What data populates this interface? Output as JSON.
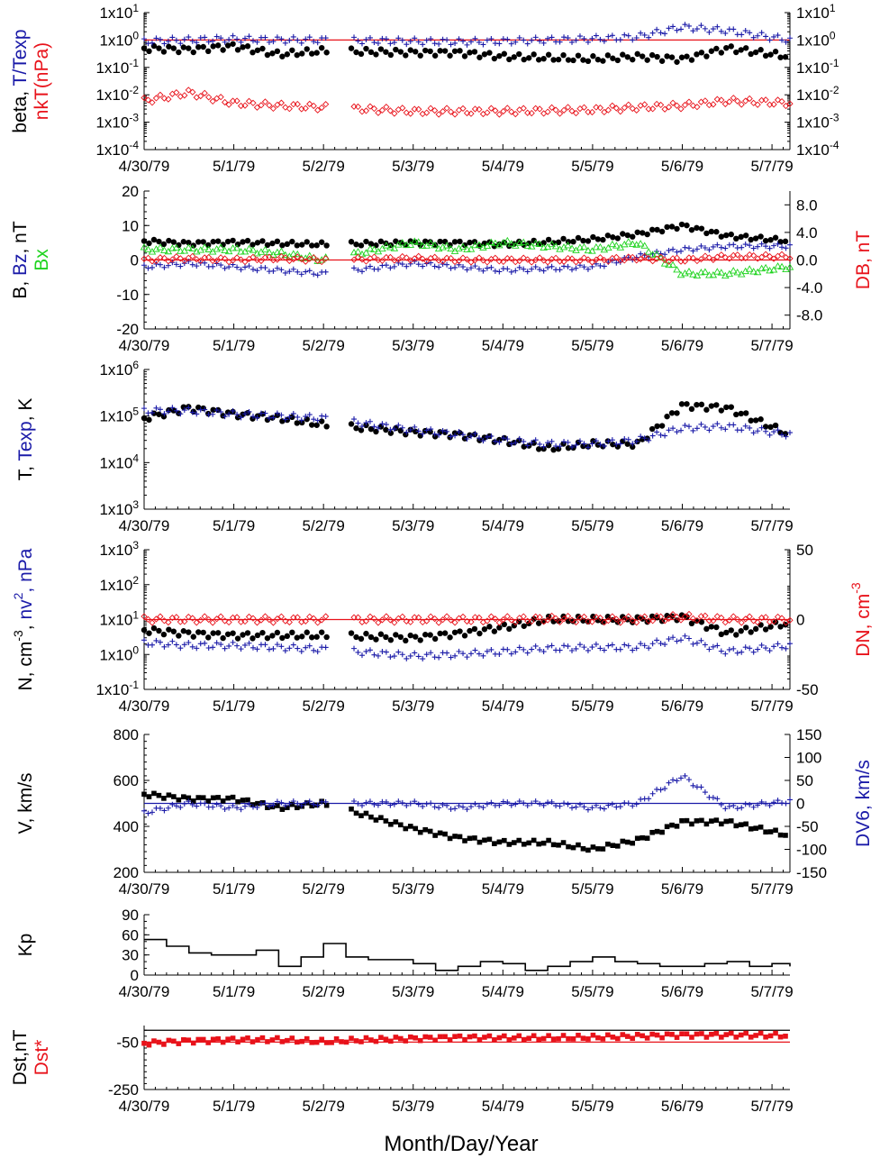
{
  "colors": {
    "black": "#000000",
    "blue": "#1a1aa8",
    "red": "#e8121a",
    "green": "#1fd31f"
  },
  "x_tick_labels": [
    "4/30/79",
    "5/1/79",
    "5/2/79",
    "5/3/79",
    "5/4/79",
    "5/5/79",
    "5/6/79",
    "5/7/79"
  ],
  "x_axis_title": "Month/Day/Year",
  "chart_data": [
    {
      "id": "beta",
      "type": "scatter",
      "yscale": "log",
      "ylim": [
        0.0001,
        10
      ],
      "yticks_left": [
        "1x10^1",
        "1x10^0",
        "1x10^-1",
        "1x10^-2",
        "1x10^-3",
        "1x10^-4"
      ],
      "yticks_right": [
        "1x10^1",
        "1x10^0",
        "1x10^-1",
        "1x10^-2",
        "1x10^-3",
        "1x10^-4"
      ],
      "ylabel_lines": [
        [
          {
            "t": "beta, ",
            "c": "black"
          },
          {
            "t": "T/Texp",
            "c": "blue"
          }
        ],
        [
          {
            "t": "nkT(nPa)",
            "c": "red"
          }
        ]
      ],
      "ref_lines": [
        {
          "y": 1,
          "color": "red"
        }
      ],
      "series": [
        {
          "marker": "dot",
          "color": "black",
          "x": [
            0,
            0.5,
            1,
            1.5,
            2,
            3,
            3.5,
            4,
            5,
            5.5,
            6,
            6.5,
            7.2
          ],
          "y": [
            0.5,
            0.45,
            0.6,
            0.3,
            0.4,
            0.35,
            0.35,
            0.25,
            0.2,
            0.25,
            0.2,
            0.5,
            0.25
          ]
        },
        {
          "marker": "plus",
          "color": "blue",
          "x": [
            0,
            0.5,
            1,
            1.5,
            2,
            3,
            3.5,
            4,
            5,
            5.5,
            6,
            6.5,
            7.2
          ],
          "y": [
            0.9,
            1.0,
            1.1,
            1.0,
            1.0,
            0.9,
            0.85,
            0.9,
            1.1,
            1.3,
            3.0,
            2.2,
            1.0
          ]
        },
        {
          "marker": "diamond",
          "color": "red",
          "x": [
            0,
            0.5,
            1,
            1.5,
            2,
            3,
            3.5,
            4,
            5,
            5.5,
            6,
            6.5,
            7.2
          ],
          "y": [
            0.006,
            0.012,
            0.005,
            0.004,
            0.0035,
            0.0025,
            0.0025,
            0.0025,
            0.0028,
            0.0035,
            0.004,
            0.006,
            0.005
          ]
        }
      ]
    },
    {
      "id": "b",
      "type": "scatter",
      "yscale": "linear",
      "ylim": [
        -20,
        20
      ],
      "ylim_right": [
        -10,
        10
      ],
      "yticks_left": [
        "20",
        "10",
        "0",
        "-10",
        "-20"
      ],
      "yticks_right": [
        "8.0",
        "4.0",
        "0.0",
        "-4.0",
        "-8.0"
      ],
      "ylabel_lines": [
        [
          {
            "t": "B, ",
            "c": "black"
          },
          {
            "t": "Bz",
            "c": "blue"
          },
          {
            "t": ", nT",
            "c": "black"
          }
        ],
        [
          {
            "t": "Bx",
            "c": "green"
          }
        ]
      ],
      "ylabel_right": {
        "t": "DB, nT",
        "c": "red"
      },
      "ref_lines": [
        {
          "y": 0,
          "color": "red"
        }
      ],
      "series": [
        {
          "marker": "dot",
          "color": "black",
          "x": [
            0,
            0.5,
            1,
            1.5,
            2,
            3,
            3.5,
            4,
            5,
            5.5,
            6,
            6.5,
            7.2
          ],
          "y": [
            5.5,
            4.8,
            5.2,
            4.8,
            4.5,
            5.0,
            5.0,
            4.5,
            6.0,
            7.5,
            10.0,
            7.0,
            5.5
          ]
        },
        {
          "marker": "plus",
          "color": "blue",
          "x": [
            0,
            0.5,
            1,
            1.5,
            2,
            3,
            3.5,
            4,
            5,
            5.5,
            6,
            6.5,
            7.2
          ],
          "y": [
            -2,
            -1,
            -2,
            -3,
            -4,
            -1,
            -2,
            -3,
            -2,
            1,
            3,
            4,
            4
          ]
        },
        {
          "marker": "tri",
          "color": "green",
          "x": [
            0,
            0.5,
            1,
            1.5,
            2,
            3,
            3.5,
            4,
            5,
            5.5,
            6,
            6.5,
            7.2
          ],
          "y": [
            3,
            3,
            3,
            2,
            0,
            5,
            3,
            5,
            3,
            5,
            -4,
            -4,
            -2
          ]
        },
        {
          "marker": "diamond",
          "color": "red",
          "x": [
            0,
            0.5,
            1,
            1.5,
            2,
            3,
            3.5,
            4,
            5,
            5.5,
            6,
            6.5,
            7.2
          ],
          "y": [
            0,
            0.5,
            0,
            0.5,
            0,
            0.5,
            0,
            0,
            0,
            0.5,
            0,
            1,
            1
          ]
        }
      ]
    },
    {
      "id": "t",
      "type": "scatter",
      "yscale": "log",
      "ylim": [
        1000,
        1000000
      ],
      "yticks_left": [
        "1x10^6",
        "1x10^5",
        "1x10^4",
        "1x10^3"
      ],
      "ylabel_lines": [
        [
          {
            "t": "T, ",
            "c": "black"
          },
          {
            "t": "Texp",
            "c": "blue"
          },
          {
            "t": ", K",
            "c": "black"
          }
        ]
      ],
      "series": [
        {
          "marker": "dot",
          "color": "black",
          "x": [
            0,
            0.5,
            1,
            1.5,
            2,
            3,
            3.5,
            4,
            4.5,
            5,
            5.5,
            6,
            6.5,
            7.2
          ],
          "y": [
            90000,
            150000,
            110000,
            90000,
            65000,
            45000,
            40000,
            30000,
            20000,
            25000,
            25000,
            170000,
            150000,
            40000
          ]
        },
        {
          "marker": "plus",
          "color": "blue",
          "x": [
            0,
            0.5,
            1,
            1.5,
            2,
            3,
            3.5,
            4,
            4.5,
            5,
            5.5,
            6,
            6.5,
            7.2
          ],
          "y": [
            130000,
            130000,
            110000,
            100000,
            90000,
            50000,
            40000,
            30000,
            25000,
            25000,
            30000,
            55000,
            60000,
            40000
          ]
        }
      ]
    },
    {
      "id": "n",
      "type": "scatter",
      "yscale": "log",
      "ylim": [
        0.1,
        1000
      ],
      "ylim_right": [
        -50,
        50
      ],
      "yticks_left": [
        "1x10^3",
        "1x10^2",
        "1x10^1",
        "1x10^0",
        "1x10^-1"
      ],
      "yticks_right": [
        "50",
        "0",
        "-50"
      ],
      "ylabel_lines": [
        [
          {
            "t": "N, cm^-3, ",
            "c": "black"
          },
          {
            "t": "nv^2, nPa",
            "c": "blue"
          }
        ]
      ],
      "ylabel_right": {
        "t": "DN, cm^-3",
        "c": "red"
      },
      "ref_lines": [
        {
          "y": 10,
          "color": "red"
        }
      ],
      "series": [
        {
          "marker": "dot",
          "color": "black",
          "x": [
            0,
            0.5,
            1,
            1.5,
            2,
            3,
            3.5,
            4,
            4.5,
            5,
            5.5,
            6,
            6.5,
            7.2
          ],
          "y": [
            5,
            4,
            3.5,
            3.5,
            3.5,
            3,
            4,
            6,
            10,
            10,
            10,
            12,
            4,
            8
          ]
        },
        {
          "marker": "plus",
          "color": "blue",
          "x": [
            0,
            0.5,
            1,
            1.5,
            2,
            3,
            3.5,
            4,
            4.5,
            5,
            5.5,
            6,
            6.5,
            7.2
          ],
          "y": [
            2.2,
            1.8,
            1.8,
            1.6,
            1.4,
            0.9,
            1,
            1.2,
            1.5,
            1.6,
            1.6,
            3,
            1.2,
            1.8
          ]
        },
        {
          "marker": "diamond",
          "color": "red",
          "x": [
            0,
            0.5,
            1,
            1.5,
            2,
            3,
            3.5,
            4,
            4.5,
            5,
            5.5,
            6,
            6.5,
            7.2
          ],
          "y": [
            10,
            10,
            10,
            10,
            10,
            10,
            10,
            10,
            10.5,
            10,
            10,
            12,
            10,
            10
          ]
        }
      ]
    },
    {
      "id": "v",
      "type": "scatter",
      "yscale": "linear",
      "ylim": [
        200,
        800
      ],
      "ylim_right": [
        -150,
        150
      ],
      "yticks_left": [
        "800",
        "600",
        "400",
        "200"
      ],
      "yticks_right": [
        "150",
        "100",
        "50",
        "0",
        "-50",
        "-100",
        "-150"
      ],
      "ylabel_lines": [
        [
          {
            "t": "V, km/s",
            "c": "black"
          }
        ]
      ],
      "ylabel_right": {
        "t": "DV6, km/s",
        "c": "blue"
      },
      "ref_lines": [
        {
          "y": 500,
          "color": "blue"
        }
      ],
      "series": [
        {
          "marker": "square",
          "color": "black",
          "x": [
            0,
            0.5,
            1,
            1.5,
            2,
            3,
            3.5,
            4,
            4.5,
            5,
            5.5,
            6,
            6.5,
            7.2
          ],
          "y": [
            540,
            520,
            520,
            480,
            500,
            390,
            350,
            330,
            330,
            300,
            340,
            420,
            420,
            360
          ]
        },
        {
          "marker": "plus",
          "color": "blue",
          "x": [
            0,
            0.5,
            1,
            1.5,
            2,
            3,
            3.5,
            4,
            4.5,
            5,
            5.5,
            6,
            6.5,
            7.2
          ],
          "y": [
            460,
            500,
            480,
            500,
            500,
            500,
            480,
            500,
            500,
            480,
            500,
            620,
            480,
            510
          ]
        }
      ]
    },
    {
      "id": "kp",
      "type": "line",
      "yscale": "linear",
      "ylim": [
        0,
        90
      ],
      "yticks_left": [
        "90",
        "60",
        "30",
        "0"
      ],
      "ylabel_lines": [
        [
          {
            "t": "Kp",
            "c": "black"
          }
        ]
      ],
      "series": [
        {
          "marker": "none",
          "color": "black",
          "x": [
            0,
            0.25,
            0.5,
            0.75,
            1,
            1.25,
            1.5,
            1.75,
            2,
            2.25,
            2.5,
            2.75,
            3,
            3.25,
            3.5,
            3.75,
            4,
            4.25,
            4.5,
            4.75,
            5,
            5.25,
            5.5,
            5.75,
            6,
            6.25,
            6.5,
            6.75,
            7,
            7.2
          ],
          "y": [
            53,
            43,
            33,
            30,
            30,
            37,
            13,
            27,
            47,
            27,
            23,
            23,
            17,
            7,
            13,
            20,
            17,
            7,
            13,
            20,
            27,
            20,
            17,
            13,
            13,
            17,
            20,
            13,
            17,
            13
          ]
        }
      ]
    },
    {
      "id": "dst",
      "type": "scatter",
      "yscale": "linear",
      "ylim": [
        -250,
        20
      ],
      "yticks_left": [
        "-50",
        "-250"
      ],
      "ylabel_lines": [
        [
          {
            "t": "Dst,nT",
            "c": "black"
          }
        ],
        [
          {
            "t": "Dst*",
            "c": "red"
          }
        ]
      ],
      "ref_lines": [
        {
          "y": 0,
          "color": "black"
        },
        {
          "y": -50,
          "color": "red"
        }
      ],
      "series": [
        {
          "marker": "square",
          "color": "red",
          "x": [
            0,
            0.5,
            1,
            1.5,
            2,
            2.5,
            3,
            3.5,
            4,
            4.5,
            5,
            5.5,
            6,
            6.5,
            7.2
          ],
          "y": [
            -55,
            -45,
            -40,
            -40,
            -48,
            -40,
            -35,
            -30,
            -32,
            -32,
            -30,
            -25,
            -20,
            -20,
            -22
          ]
        }
      ]
    }
  ]
}
